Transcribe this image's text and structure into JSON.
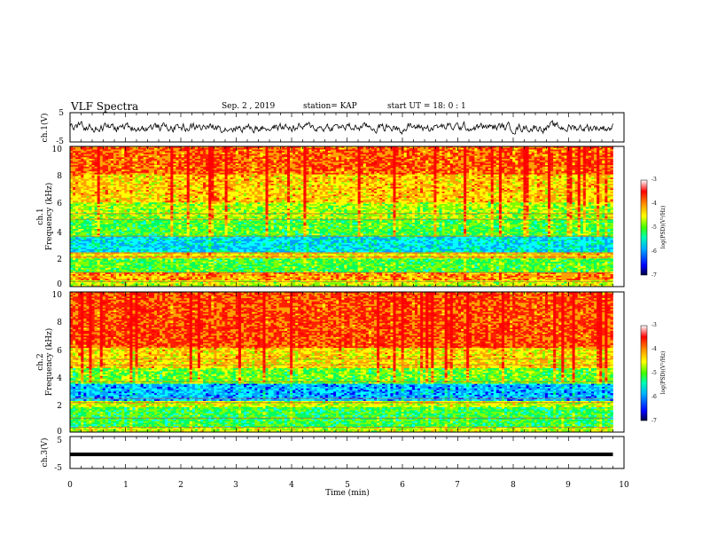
{
  "header": {
    "title": "VLF Spectra",
    "date": "Sep. 2 , 2019",
    "station": "station= KAP",
    "start": "start  UT  =   18: 0  : 1"
  },
  "chart_data": [
    {
      "type": "line",
      "panel": "ch1-waveform",
      "ylabel": "ch.1(V)",
      "ylim": [
        -5,
        5
      ],
      "yticks": [
        "5",
        "-5"
      ],
      "xlim": [
        0,
        10
      ],
      "series": [
        {
          "description_values": "noisy waveform approx -2 to 2 V",
          "approx_range": [
            -2.5,
            2.5
          ]
        }
      ]
    },
    {
      "type": "heatmap",
      "panel": "ch1-spectrogram",
      "ylabel": [
        "ch.1",
        "Frequency  (kHz)"
      ],
      "ylim": [
        0,
        10
      ],
      "yticks": [
        "0",
        "2",
        "4",
        "6",
        "8",
        "10"
      ],
      "xlim": [
        0,
        9.8
      ],
      "colorbar": {
        "label": "log(PSD)(V²/Hz)",
        "range": [
          -7,
          -3
        ],
        "ticks": [
          "-3",
          "-4",
          "-5",
          "-6",
          "-7"
        ]
      },
      "bands": [
        {
          "f_low": 0,
          "f_high": 0.4,
          "log_psd": -4.6
        },
        {
          "f_low": 0.4,
          "f_high": 1.0,
          "log_psd": -4.0
        },
        {
          "f_low": 1.0,
          "f_high": 2.0,
          "log_psd": -5.0
        },
        {
          "f_low": 2.0,
          "f_high": 2.5,
          "log_psd": -4.3
        },
        {
          "f_low": 2.5,
          "f_high": 3.6,
          "log_psd": -5.7
        },
        {
          "f_low": 3.6,
          "f_high": 4.8,
          "log_psd": -5.0
        },
        {
          "f_low": 4.8,
          "f_high": 6.0,
          "log_psd": -4.7
        },
        {
          "f_low": 6.0,
          "f_high": 8.0,
          "log_psd": -4.2
        },
        {
          "f_low": 8.0,
          "f_high": 10.0,
          "log_psd": -3.8
        }
      ]
    },
    {
      "type": "heatmap",
      "panel": "ch2-spectrogram",
      "ylabel": [
        "ch.2",
        "Frequency  (kHz)"
      ],
      "ylim": [
        0,
        10
      ],
      "yticks": [
        "0",
        "2",
        "4",
        "6",
        "8",
        "10"
      ],
      "xlim": [
        0,
        9.8
      ],
      "colorbar": {
        "label": "log(PSD)(V²/Hz)",
        "range": [
          -7,
          -3
        ],
        "ticks": [
          "-3",
          "-4",
          "-5",
          "-6",
          "-7"
        ]
      },
      "bands": [
        {
          "f_low": 0,
          "f_high": 0.3,
          "log_psd": -4.6
        },
        {
          "f_low": 0.3,
          "f_high": 1.8,
          "log_psd": -5.1
        },
        {
          "f_low": 1.8,
          "f_high": 2.2,
          "log_psd": -4.6
        },
        {
          "f_low": 2.2,
          "f_high": 3.5,
          "log_psd": -5.9
        },
        {
          "f_low": 3.5,
          "f_high": 4.6,
          "log_psd": -4.9
        },
        {
          "f_low": 4.6,
          "f_high": 6.0,
          "log_psd": -4.3
        },
        {
          "f_low": 6.0,
          "f_high": 10.0,
          "log_psd": -3.7
        }
      ]
    },
    {
      "type": "line",
      "panel": "ch3-waveform",
      "ylabel": "ch.3(V)",
      "ylim": [
        -5,
        5
      ],
      "yticks": [
        "5",
        "-5"
      ],
      "xlim": [
        0,
        10
      ],
      "series": [
        {
          "approx_constant": -1.2
        }
      ]
    }
  ],
  "xaxis": {
    "label": "Time  (min)",
    "ticks": [
      "0",
      "1",
      "2",
      "3",
      "4",
      "5",
      "6",
      "7",
      "8",
      "9",
      "10"
    ],
    "range": [
      0,
      10
    ]
  },
  "colors": {
    "colormap": [
      "#000080",
      "#0000ff",
      "#00a0ff",
      "#00ffff",
      "#00ff60",
      "#80ff00",
      "#ffff00",
      "#ffa000",
      "#ff2000",
      "#ff0000",
      "#ffffff"
    ]
  }
}
